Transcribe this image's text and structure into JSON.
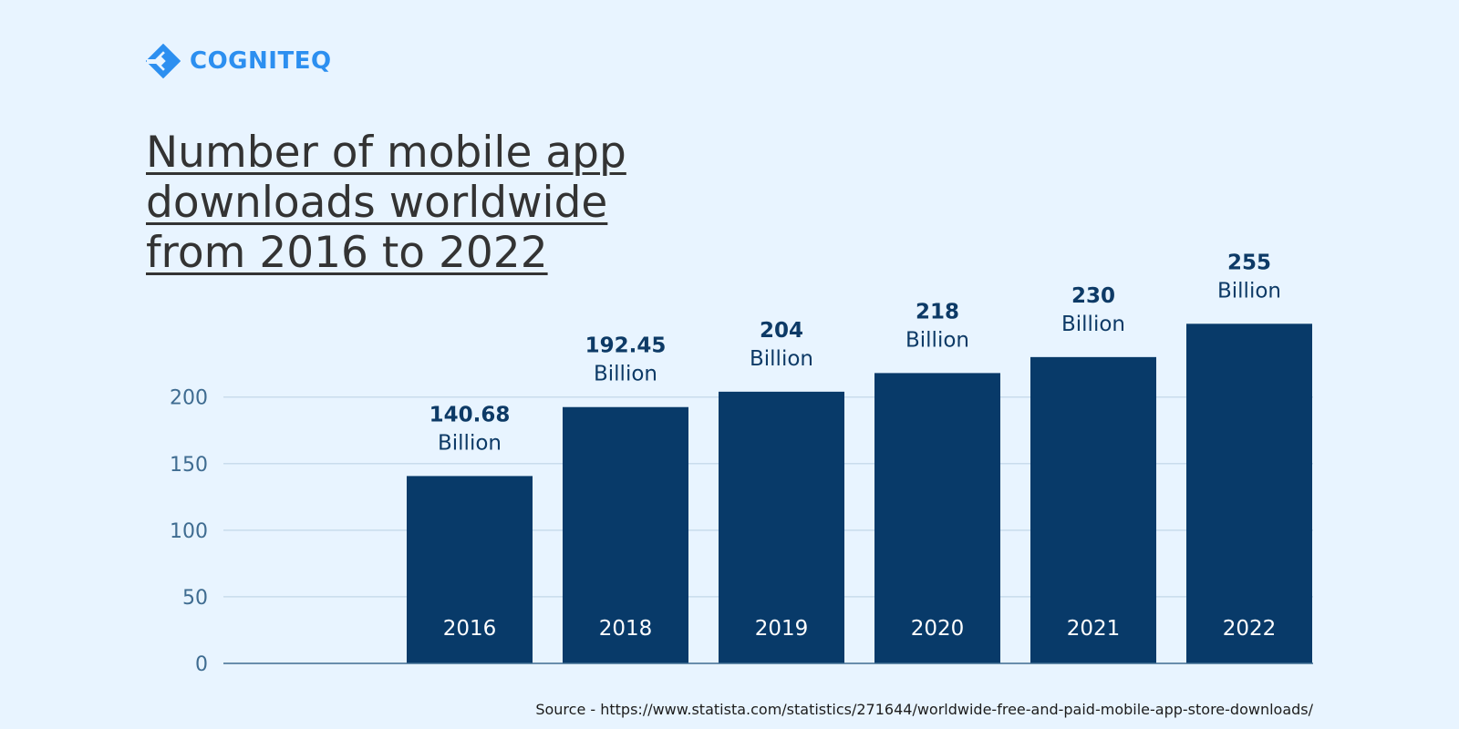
{
  "brand": {
    "name": "COGNITEQ",
    "logo_icon": "cogniteq-diamond-logo-icon",
    "color": "#2c8ff0"
  },
  "title_lines": [
    "Number of mobile app",
    "downloads worldwide",
    "from 2016 to 2022"
  ],
  "source": "Source - https://www.statista.com/statistics/271644/worldwide-free-and-paid-mobile-app-store-downloads/",
  "chart_data": {
    "type": "bar",
    "title": "Number of mobile app downloads worldwide from 2016 to 2022",
    "categories": [
      "2016",
      "2018",
      "2019",
      "2020",
      "2021",
      "2022"
    ],
    "values": [
      140.68,
      192.45,
      204,
      218,
      230,
      255
    ],
    "value_labels": [
      "140.68",
      "192.45",
      "204",
      "218",
      "230",
      "255"
    ],
    "unit_label": "Billion",
    "yticks": [
      0,
      50,
      100,
      150,
      200
    ],
    "ylim": [
      0,
      255
    ],
    "grid": true,
    "legend": "none",
    "bar_color": "#083a69",
    "background": "#e8f4ff"
  }
}
